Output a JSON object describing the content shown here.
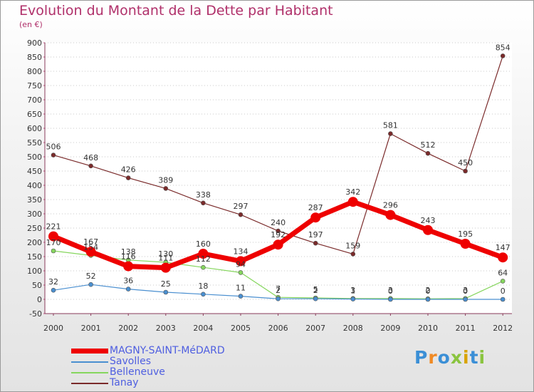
{
  "title": "Evolution du Montant de la Dette par Habitant",
  "subtitle": "(en €)",
  "logo": {
    "text": "Proxiti",
    "colors": [
      "#3b8fd6",
      "#f08a24",
      "#3b8fd6",
      "#8ac43f",
      "#d9a300",
      "#3b8fd6",
      "#8ac43f"
    ]
  },
  "colors": {
    "title": "#b0306a",
    "legend_text": "#4e5ee0",
    "axis_text": "#333333",
    "grid": "#c8c8c8"
  },
  "chart_data": {
    "type": "line",
    "title": "Evolution du Montant de la Dette par Habitant",
    "ylabel": "(en €)",
    "xlabel": "",
    "x": [
      "2000",
      "2001",
      "2002",
      "2003",
      "2004",
      "2005",
      "2006",
      "2007",
      "2008",
      "2009",
      "2010",
      "2011",
      "2012"
    ],
    "ylim": [
      -50,
      900
    ],
    "yticks": [
      -50,
      0,
      50,
      100,
      150,
      200,
      250,
      300,
      350,
      400,
      450,
      500,
      550,
      600,
      650,
      700,
      750,
      800,
      850,
      900
    ],
    "grid": "horizontal dotted",
    "legend_position": "bottom-left",
    "series": [
      {
        "name": "MAGNY-SAINT-MéDARD",
        "color": "#ee0000",
        "values": [
          221,
          167,
          116,
          111,
          160,
          134,
          192,
          287,
          342,
          296,
          243,
          195,
          147
        ],
        "labels": [
          "221",
          "167",
          "116",
          "111",
          "160",
          "134",
          "192",
          "287",
          "342",
          "296",
          "243",
          "195",
          "147"
        ]
      },
      {
        "name": "Savolles",
        "color": "#4a8fd0",
        "values": [
          32,
          52,
          36,
          25,
          18,
          11,
          2,
          2,
          1,
          0,
          0,
          0,
          0
        ],
        "labels": [
          "32",
          "52",
          "36",
          "25",
          "18",
          "11",
          "2",
          "2",
          "1",
          "0",
          "0",
          "0",
          "0"
        ]
      },
      {
        "name": "Belleneuve",
        "color": "#86d65e",
        "values": [
          170,
          154,
          138,
          130,
          112,
          94,
          7,
          5,
          3,
          3,
          2,
          3,
          64
        ],
        "labels": [
          "170",
          "154",
          "138",
          "130",
          "112",
          "94",
          "7",
          "5",
          "3",
          "3",
          "2",
          "3",
          "64"
        ]
      },
      {
        "name": "Tanay",
        "color": "#7a2a2a",
        "values": [
          506,
          468,
          426,
          389,
          338,
          297,
          240,
          197,
          159,
          581,
          512,
          450,
          854
        ],
        "labels": [
          "506",
          "468",
          "426",
          "389",
          "338",
          "297",
          "240",
          "197",
          "159",
          "581",
          "512",
          "450",
          "854"
        ]
      }
    ]
  }
}
